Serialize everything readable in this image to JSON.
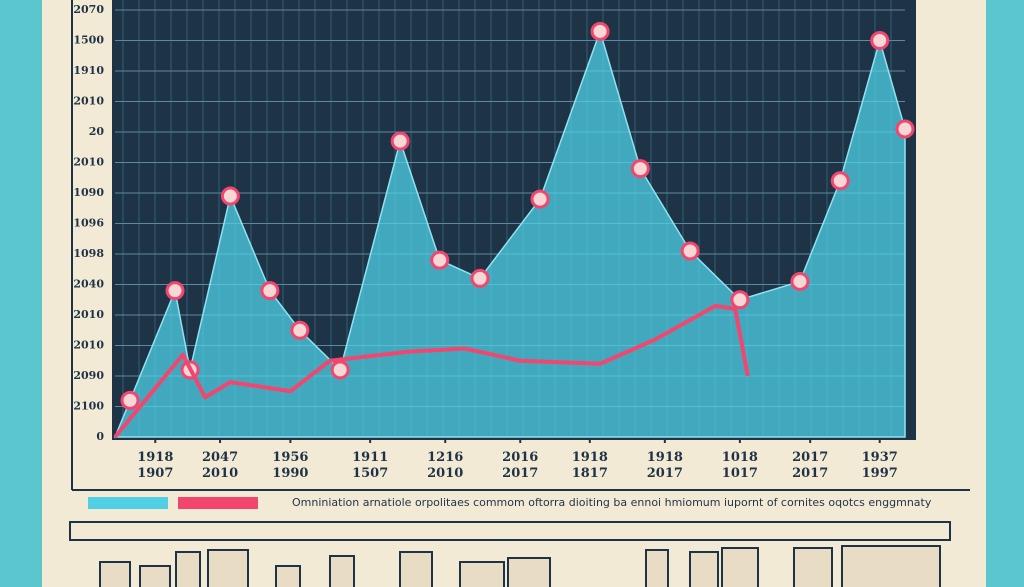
{
  "chart_data": {
    "type": "area",
    "caption": "Omniniation arnatiole orpolitaes commom oftorra dioiting ba ennoi hmiomum iupornt of cornites oqotcs enggmnaty",
    "xlim": [
      0,
      100
    ],
    "ylim": [
      0,
      14
    ],
    "xticks": [
      {
        "value": 5.1,
        "label": "1918 1907"
      },
      {
        "value": 13.3,
        "label": "2047 2010"
      },
      {
        "value": 22.2,
        "label": "1956 1990"
      },
      {
        "value": 32.3,
        "label": "1911 1507"
      },
      {
        "value": 41.8,
        "label": "1216 2010"
      },
      {
        "value": 51.3,
        "label": "2016 2017"
      },
      {
        "value": 60.1,
        "label": "1918 1817"
      },
      {
        "value": 69.6,
        "label": "1918 2017"
      },
      {
        "value": 79.1,
        "label": "1018 1017"
      },
      {
        "value": 88.0,
        "label": "2017 2017"
      },
      {
        "value": 96.8,
        "label": "1937 1997"
      }
    ],
    "yticks": [
      {
        "value": 0,
        "label": "0"
      },
      {
        "value": 1,
        "label": "2100"
      },
      {
        "value": 2,
        "label": "2090"
      },
      {
        "value": 3,
        "label": "2010"
      },
      {
        "value": 4,
        "label": "2010"
      },
      {
        "value": 5,
        "label": "2040"
      },
      {
        "value": 6,
        "label": "1098"
      },
      {
        "value": 7,
        "label": "1096"
      },
      {
        "value": 8,
        "label": "1090"
      },
      {
        "value": 9,
        "label": "2010"
      },
      {
        "value": 10,
        "label": "20"
      },
      {
        "value": 11,
        "label": "2010"
      },
      {
        "value": 12,
        "label": "1910"
      },
      {
        "value": 13,
        "label": "1500"
      },
      {
        "value": 14,
        "label": "2070"
      }
    ],
    "grid": true,
    "series": [
      {
        "color": "#4fd0e6",
        "kind": "area",
        "x": [
          0,
          1.9,
          7.6,
          9.5,
          14.6,
          19.6,
          23.4,
          28.5,
          36.1,
          41.1,
          46.2,
          53.8,
          61.4,
          66.5,
          72.8,
          79.1,
          86.7,
          91.8,
          96.8,
          100
        ],
        "values": [
          0,
          1.2,
          4.8,
          2.2,
          7.9,
          4.8,
          3.5,
          2.2,
          9.7,
          5.8,
          5.2,
          7.8,
          13.3,
          8.8,
          6.1,
          4.5,
          5.1,
          8.4,
          13.0,
          10.1
        ]
      },
      {
        "color": "#f2466e",
        "kind": "line",
        "x": [
          0,
          8.6,
          11.4,
          14.6,
          22.2,
          27.2,
          37.3,
          44.3,
          51.3,
          61.4,
          68.4,
          76.0,
          78.5,
          80.1
        ],
        "values": [
          0,
          2.7,
          1.3,
          1.8,
          1.5,
          2.5,
          2.8,
          2.9,
          2.5,
          2.4,
          3.2,
          4.3,
          4.2,
          2.0
        ]
      }
    ]
  }
}
